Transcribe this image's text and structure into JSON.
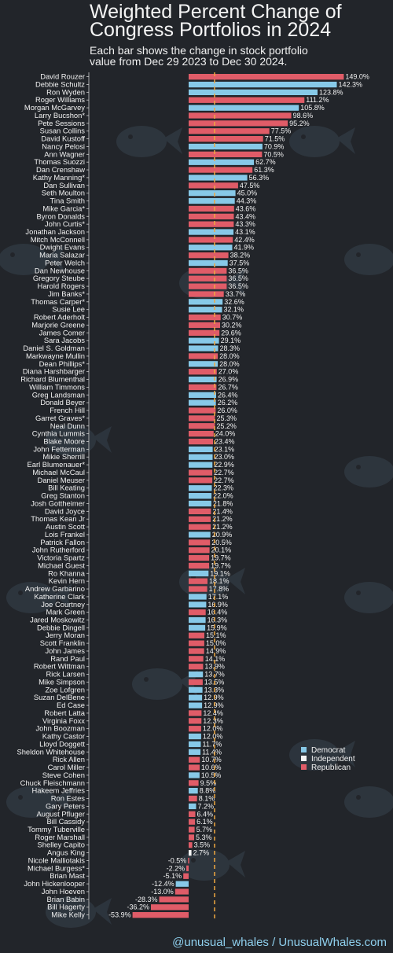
{
  "title": "Weighted Percent Change of\nCongress Portfolios in 2024",
  "subtitle": "Each bar shows the change in stock portfolio\nvalue from Dec 29 2023 to Dec 30 2024.",
  "footer": "@unusual_whales / UnusualWhales.com",
  "colors": {
    "background": "#22252a",
    "Democrat": "#87c9e8",
    "Independent": "#f4f4f4",
    "Republican": "#e05c68",
    "reference_line": "#f0a840"
  },
  "chart_data": {
    "type": "bar",
    "orientation": "horizontal",
    "title": "Weighted Percent Change of Congress Portfolios in 2024",
    "value_suffix": "%",
    "xlim": [
      -60,
      160
    ],
    "reference_line_value": 24.9,
    "legend": {
      "placement": "right",
      "entries": [
        "Democrat",
        "Independent",
        "Republican"
      ]
    },
    "categories": [
      "David Rouzer",
      "Debbie Schultz",
      "Ron Wyden",
      "Roger Williams",
      "Morgan McGarvey",
      "Larry Bucshon*",
      "Pete Sessions",
      "Susan Collins",
      "David Kustoff",
      "Nancy Pelosi",
      "Ann Wagner",
      "Thomas Suozzi",
      "Dan Crenshaw",
      "Kathy Manning*",
      "Dan Sullivan",
      "Seth Moulton",
      "Tina Smith",
      "Mike Garcia*",
      "Byron Donalds",
      "John Curtis*",
      "Jonathan Jackson",
      "Mitch McConnell",
      "Dwight Evans",
      "Maria Salazar",
      "Peter Welch",
      "Dan Newhouse",
      "Gregory Steube",
      "Harold Rogers",
      "Jim Banks*",
      "Thomas Carper*",
      "Susie Lee",
      "Robert Aderholt",
      "Marjorie Greene",
      "James Comer",
      "Sara Jacobs",
      "Daniel S. Goldman",
      "Markwayne Mullin",
      "Dean Phillips*",
      "Diana Harshbarger",
      "Richard Blumenthal",
      "William Timmons",
      "Greg Landsman",
      "Donald Beyer",
      "French Hill",
      "Garret Graves*",
      "Neal Dunn",
      "Cynthia Lummis",
      "Blake Moore",
      "John Fetterman",
      "Mikie Sherrill",
      "Earl Blumenauer*",
      "Michael McCaul",
      "Daniel Meuser",
      "Bill Keating",
      "Greg Stanton",
      "Josh Gottheimer",
      "David Joyce",
      "Thomas Kean Jr",
      "Austin Scott",
      "Lois Frankel",
      "Patrick Fallon",
      "John Rutherford",
      "Victoria Spartz",
      "Michael Guest",
      "Ro Khanna",
      "Kevin Hern",
      "Andrew Garbarino",
      "Katherine Clark",
      "Joe Courtney",
      "Mark Green",
      "Jared Moskowitz",
      "Debbie Dingell",
      "Jerry Moran",
      "Scott Franklin",
      "John James",
      "Rand Paul",
      "Robert Wittman",
      "Rick Larsen",
      "Mike Simpson",
      "Zoe Lofgren",
      "Suzan DelBene",
      "Ed Case",
      "Robert Latta",
      "Virginia Foxx",
      "John Boozman",
      "Kathy Castor",
      "Lloyd Doggett",
      "Sheldon Whitehouse",
      "Rick Allen",
      "Carol Miller",
      "Steve Cohen",
      "Chuck Fleischmann",
      "Hakeem Jeffries",
      "Ron Estes",
      "Gary Peters",
      "August Pfluger",
      "Bill Cassidy",
      "Tommy Tuberville",
      "Roger Marshall",
      "Shelley Capito",
      "Angus King",
      "Nicole Malliotakis",
      "Michael Burgess*",
      "Brian Mast",
      "John Hickenlooper",
      "John Hoeven",
      "Brian Babin",
      "Bill Hagerty",
      "Mike Kelly"
    ],
    "values": [
      149.0,
      142.3,
      123.8,
      111.2,
      105.8,
      98.6,
      95.2,
      77.5,
      71.5,
      70.9,
      70.5,
      62.7,
      61.3,
      56.3,
      47.5,
      45.0,
      44.3,
      43.6,
      43.4,
      43.3,
      43.1,
      42.4,
      41.9,
      38.2,
      37.5,
      36.5,
      36.5,
      36.5,
      33.7,
      32.6,
      32.1,
      30.7,
      30.2,
      29.6,
      29.1,
      28.3,
      28.0,
      28.0,
      27.0,
      26.9,
      26.7,
      26.4,
      26.2,
      26.0,
      25.3,
      25.2,
      24.0,
      23.4,
      23.1,
      23.0,
      22.9,
      22.7,
      22.7,
      22.3,
      22.0,
      21.8,
      21.4,
      21.2,
      21.2,
      20.9,
      20.5,
      20.1,
      19.7,
      19.7,
      19.1,
      18.1,
      17.8,
      17.1,
      16.9,
      16.4,
      16.3,
      15.9,
      15.1,
      15.0,
      14.9,
      14.1,
      13.9,
      13.7,
      13.5,
      13.3,
      12.9,
      12.9,
      12.4,
      12.3,
      12.0,
      12.0,
      11.7,
      11.4,
      10.7,
      10.6,
      10.5,
      9.5,
      8.8,
      8.1,
      7.2,
      6.4,
      6.1,
      5.7,
      5.3,
      3.5,
      2.7,
      -0.5,
      -2.2,
      -5.1,
      -12.4,
      -13.0,
      -28.3,
      -36.2,
      -53.9
    ],
    "parties": [
      "R",
      "D",
      "D",
      "R",
      "D",
      "R",
      "R",
      "R",
      "R",
      "D",
      "R",
      "D",
      "R",
      "D",
      "R",
      "D",
      "D",
      "R",
      "R",
      "R",
      "D",
      "R",
      "D",
      "R",
      "D",
      "R",
      "R",
      "R",
      "R",
      "D",
      "D",
      "R",
      "R",
      "R",
      "D",
      "D",
      "R",
      "D",
      "R",
      "D",
      "R",
      "D",
      "D",
      "R",
      "R",
      "R",
      "R",
      "R",
      "D",
      "D",
      "D",
      "R",
      "R",
      "D",
      "D",
      "D",
      "R",
      "R",
      "R",
      "D",
      "R",
      "R",
      "R",
      "R",
      "D",
      "R",
      "R",
      "D",
      "D",
      "R",
      "D",
      "D",
      "R",
      "R",
      "R",
      "R",
      "R",
      "D",
      "R",
      "D",
      "D",
      "D",
      "R",
      "R",
      "R",
      "D",
      "D",
      "D",
      "R",
      "R",
      "D",
      "R",
      "D",
      "R",
      "D",
      "R",
      "R",
      "R",
      "R",
      "R",
      "I",
      "R",
      "R",
      "R",
      "D",
      "R",
      "R",
      "R",
      "R"
    ]
  }
}
